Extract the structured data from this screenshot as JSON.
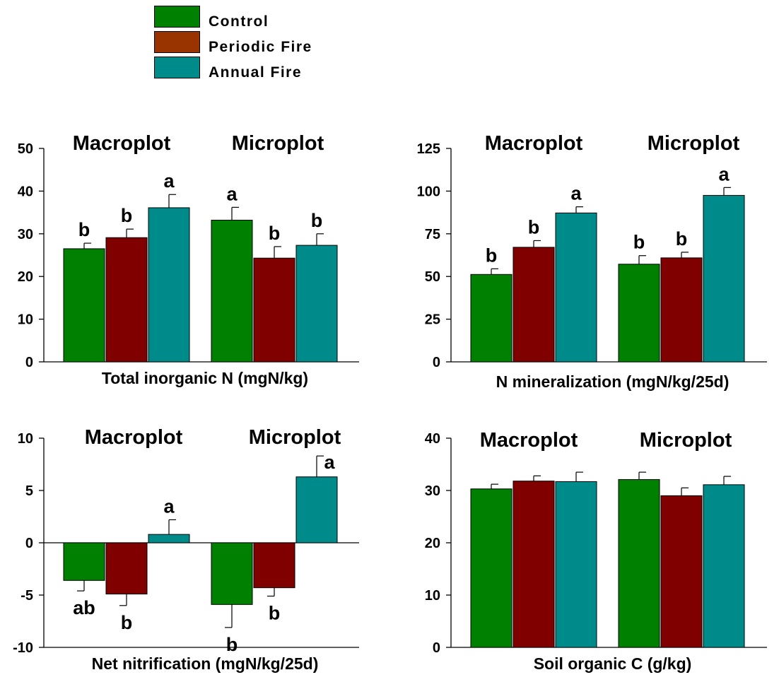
{
  "legend": {
    "items": [
      {
        "label": "Control",
        "color": "#008000"
      },
      {
        "label": "Periodic Fire",
        "color": "#993300"
      },
      {
        "label": "Annual Fire",
        "color": "#008b8b"
      }
    ]
  },
  "colors": {
    "control": "#008000",
    "periodic_fire": "#800000",
    "annual_fire": "#008b8b"
  },
  "chart_data": [
    {
      "type": "bar",
      "xlabel": "Total inorganic N (mgN/kg)",
      "ylim": [
        0,
        50
      ],
      "yticks": [
        0,
        10,
        20,
        30,
        40,
        50
      ],
      "categories": [
        "Macroplot",
        "Microplot"
      ],
      "series": [
        {
          "name": "Control",
          "values": [
            26.5,
            33.2
          ],
          "errors": [
            1.3,
            3.0
          ],
          "labels": [
            "b",
            "a"
          ]
        },
        {
          "name": "Periodic Fire",
          "values": [
            29.1,
            24.3
          ],
          "errors": [
            2.0,
            2.7
          ],
          "labels": [
            "b",
            "b"
          ]
        },
        {
          "name": "Annual Fire",
          "values": [
            36.1,
            27.3
          ],
          "errors": [
            3.1,
            2.7
          ],
          "labels": [
            "a",
            "b"
          ]
        }
      ]
    },
    {
      "type": "bar",
      "xlabel": "N mineralization (mgN/kg/25d)",
      "ylim": [
        0,
        125
      ],
      "yticks": [
        0,
        25,
        50,
        75,
        100,
        125
      ],
      "categories": [
        "Macroplot",
        "Microplot"
      ],
      "series": [
        {
          "name": "Control",
          "values": [
            51.2,
            57.2
          ],
          "errors": [
            3.3,
            5.0
          ],
          "labels": [
            "b",
            "b"
          ]
        },
        {
          "name": "Periodic Fire",
          "values": [
            67.1,
            60.9
          ],
          "errors": [
            3.9,
            3.3
          ],
          "labels": [
            "b",
            "b"
          ]
        },
        {
          "name": "Annual Fire",
          "values": [
            87.2,
            97.5
          ],
          "errors": [
            3.6,
            4.6
          ],
          "labels": [
            "a",
            "a"
          ]
        }
      ]
    },
    {
      "type": "bar",
      "xlabel": "Net nitrification (mgN/kg/25d)",
      "ylim": [
        -10,
        10
      ],
      "yticks": [
        -10,
        -5,
        0,
        5,
        10
      ],
      "categories": [
        "Macroplot",
        "Microplot"
      ],
      "series": [
        {
          "name": "Control",
          "values": [
            -3.6,
            -5.9
          ],
          "errors": [
            1.0,
            2.2
          ],
          "labels": [
            "ab",
            "b"
          ]
        },
        {
          "name": "Periodic Fire",
          "values": [
            -4.9,
            -4.3
          ],
          "errors": [
            1.1,
            0.8
          ],
          "labels": [
            "b",
            "b"
          ]
        },
        {
          "name": "Annual Fire",
          "values": [
            0.8,
            6.3
          ],
          "errors": [
            1.4,
            2.0
          ],
          "labels": [
            "a",
            "a"
          ]
        }
      ]
    },
    {
      "type": "bar",
      "xlabel": "Soil organic C (g/kg)",
      "ylim": [
        0,
        40
      ],
      "yticks": [
        0,
        10,
        20,
        30,
        40
      ],
      "categories": [
        "Macroplot",
        "Microplot"
      ],
      "series": [
        {
          "name": "Control",
          "values": [
            30.3,
            32.1
          ],
          "errors": [
            0.9,
            1.4
          ],
          "labels": [
            "",
            ""
          ]
        },
        {
          "name": "Periodic Fire",
          "values": [
            31.8,
            29.0
          ],
          "errors": [
            1.0,
            1.5
          ],
          "labels": [
            "",
            ""
          ]
        },
        {
          "name": "Annual Fire",
          "values": [
            31.7,
            31.1
          ],
          "errors": [
            1.8,
            1.6
          ],
          "labels": [
            "",
            ""
          ]
        }
      ]
    }
  ]
}
